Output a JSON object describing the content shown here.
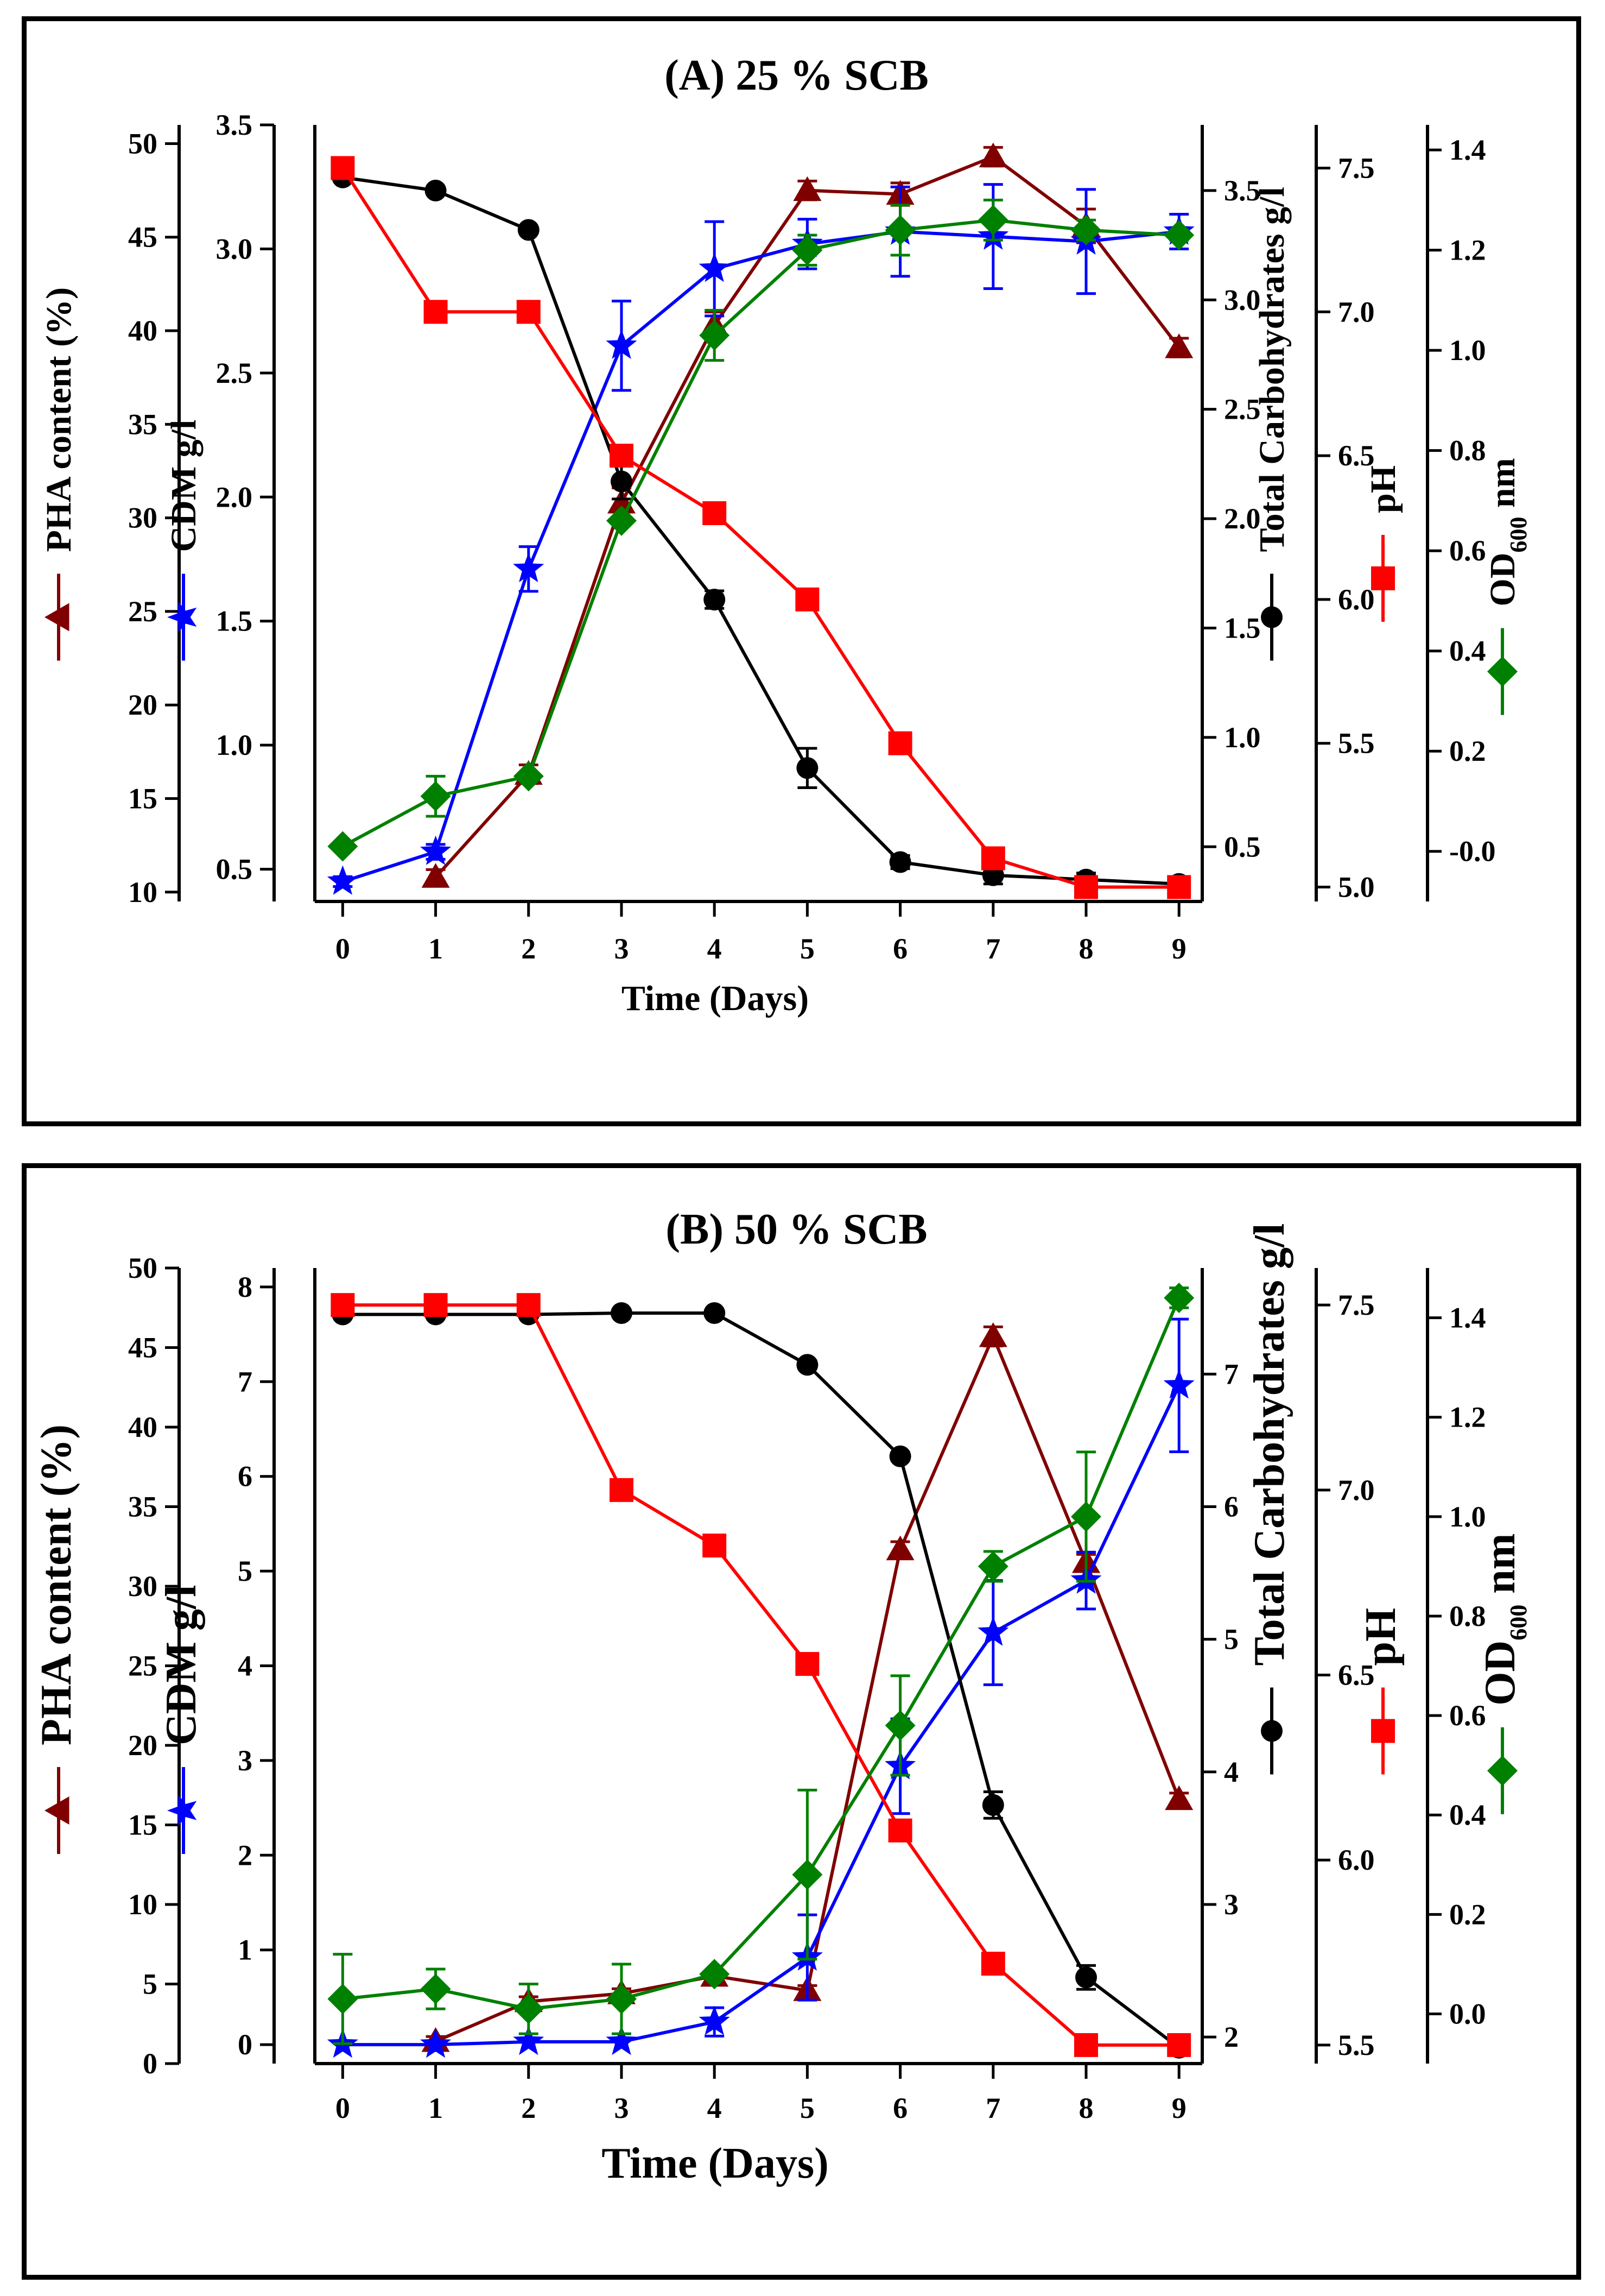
{
  "chart_data": [
    {
      "type": "line",
      "title": "(A) 25 % SCB",
      "xlabel": "Time (Days)",
      "x": [
        0,
        1,
        2,
        3,
        4,
        5,
        6,
        7,
        8,
        9
      ],
      "xticks": [
        "0",
        "1",
        "2",
        "3",
        "4",
        "5",
        "6",
        "7",
        "8",
        "9"
      ],
      "axes": {
        "pha": {
          "label": "PHA content (%)",
          "ylim": [
            9.5,
            51
          ],
          "ticks": [
            "10",
            "15",
            "20",
            "25",
            "30",
            "35",
            "40",
            "45",
            "50"
          ]
        },
        "cdm": {
          "label": "CDM g/l",
          "ylim": [
            0.37,
            3.5
          ],
          "ticks": [
            "0.5",
            "1.0",
            "1.5",
            "2.0",
            "2.5",
            "3.0",
            "3.5"
          ]
        },
        "carb": {
          "label": "Total Carbohydrates g/l",
          "ylim": [
            0.25,
            3.8
          ],
          "ticks": [
            "0.5",
            "1.0",
            "1.5",
            "2.0",
            "2.5",
            "3.0",
            "3.5"
          ]
        },
        "ph": {
          "label": "pH",
          "ylim": [
            4.95,
            7.65
          ],
          "ticks": [
            "5.0",
            "5.5",
            "6.0",
            "6.5",
            "7.0",
            "7.5"
          ]
        },
        "od": {
          "label_main": "OD",
          "label_sub": "600",
          "label_unit": " nm",
          "ylim": [
            -0.1,
            1.45
          ],
          "ticks": [
            "-0.0",
            "0.2",
            "0.4",
            "0.6",
            "0.8",
            "1.0",
            "1.2",
            "1.4"
          ]
        }
      },
      "series": [
        {
          "name": "PHA content (%)",
          "axis": "pha",
          "color": "#800000",
          "marker": "triangle",
          "x": [
            1,
            2,
            3,
            4,
            5,
            6,
            7,
            8,
            9
          ],
          "values": [
            10.8,
            16.3,
            30.8,
            40.3,
            47.5,
            47.3,
            49.3,
            45.6,
            39.1
          ],
          "err": [
            0.4,
            0.5,
            0.8,
            0.7,
            0.5,
            0.6,
            0.5,
            0.9,
            0.5
          ]
        },
        {
          "name": "CDM g/l",
          "axis": "cdm",
          "color": "#0000ff",
          "marker": "star",
          "x": [
            0,
            1,
            2,
            3,
            4,
            5,
            6,
            7,
            8,
            9
          ],
          "values": [
            0.45,
            0.57,
            1.71,
            2.61,
            2.92,
            3.02,
            3.07,
            3.05,
            3.03,
            3.07
          ],
          "err": [
            0.02,
            0.03,
            0.09,
            0.18,
            0.19,
            0.1,
            0.18,
            0.21,
            0.21,
            0.07
          ]
        },
        {
          "name": "Total Carbohydrates g/l",
          "axis": "carb",
          "color": "#000000",
          "marker": "circle",
          "x": [
            0,
            1,
            2,
            3,
            4,
            5,
            6,
            7,
            8,
            9
          ],
          "values": [
            3.56,
            3.5,
            3.32,
            2.17,
            1.63,
            0.86,
            0.43,
            0.37,
            0.35,
            0.33
          ],
          "err": [
            0.0,
            0.0,
            0.0,
            0.08,
            0.04,
            0.09,
            0.03,
            0.04,
            0.03,
            0.03
          ]
        },
        {
          "name": "pH",
          "axis": "ph",
          "color": "#ff0000",
          "marker": "square",
          "x": [
            0,
            1,
            2,
            3,
            4,
            5,
            6,
            7,
            8,
            9
          ],
          "values": [
            7.5,
            7.0,
            7.0,
            6.5,
            6.3,
            6.0,
            5.5,
            5.1,
            5.0,
            5.0
          ]
        },
        {
          "name": "OD600 nm",
          "axis": "od",
          "color": "#008000",
          "marker": "diamond",
          "x": [
            0,
            1,
            2,
            3,
            4,
            5,
            6,
            7,
            8,
            9
          ],
          "values": [
            0.01,
            0.11,
            0.15,
            0.66,
            1.03,
            1.2,
            1.24,
            1.26,
            1.24,
            1.23
          ],
          "err": [
            0.0,
            0.04,
            0.0,
            0.0,
            0.05,
            0.03,
            0.05,
            0.04,
            0.02,
            0.01
          ]
        }
      ]
    },
    {
      "type": "line",
      "title": "(B) 50 % SCB",
      "xlabel": "Time (Days)",
      "x": [
        0,
        1,
        2,
        3,
        4,
        5,
        6,
        7,
        8,
        9
      ],
      "xticks": [
        "0",
        "1",
        "2",
        "3",
        "4",
        "5",
        "6",
        "7",
        "8",
        "9"
      ],
      "axes": {
        "pha": {
          "label": "PHA content (%)",
          "ylim": [
            0,
            50
          ],
          "ticks": [
            "0",
            "5",
            "10",
            "15",
            "20",
            "25",
            "30",
            "35",
            "40",
            "45",
            "50"
          ]
        },
        "cdm": {
          "label": "CDM g/l",
          "ylim": [
            -0.2,
            8.2
          ],
          "ticks": [
            "0",
            "1",
            "2",
            "3",
            "4",
            "5",
            "6",
            "7",
            "8"
          ]
        },
        "carb": {
          "label": "Total Carbohydrates g/l",
          "ylim": [
            1.8,
            7.8
          ],
          "ticks": [
            "2",
            "3",
            "4",
            "5",
            "6",
            "7"
          ]
        },
        "ph": {
          "label": "pH",
          "ylim": [
            5.45,
            7.6
          ],
          "ticks": [
            "5.5",
            "6.0",
            "6.5",
            "7.0",
            "7.5"
          ]
        },
        "od": {
          "label_main": "OD",
          "label_sub": "600",
          "label_unit": " nm",
          "ylim": [
            -0.1,
            1.5
          ],
          "ticks": [
            "0.0",
            "0.2",
            "0.4",
            "0.6",
            "0.8",
            "1.0",
            "1.2",
            "1.4"
          ]
        }
      },
      "series": [
        {
          "name": "PHA content (%)",
          "axis": "pha",
          "color": "#800000",
          "marker": "triangle",
          "x": [
            1,
            2,
            3,
            4,
            5,
            6,
            7,
            8,
            9
          ],
          "values": [
            1.4,
            3.9,
            4.4,
            5.5,
            4.6,
            32.3,
            45.7,
            31.5,
            16.6
          ],
          "err": [
            0.3,
            0.3,
            0.3,
            0.3,
            0.3,
            0.5,
            0.6,
            0.5,
            0.4
          ]
        },
        {
          "name": "CDM g/l",
          "axis": "cdm",
          "color": "#0000ff",
          "marker": "star",
          "x": [
            0,
            1,
            2,
            3,
            4,
            5,
            6,
            7,
            8,
            9
          ],
          "values": [
            0.0,
            0.0,
            0.03,
            0.03,
            0.24,
            0.92,
            2.94,
            4.35,
            4.9,
            6.96
          ],
          "err": [
            0.0,
            0.0,
            0.0,
            0.0,
            0.15,
            0.45,
            0.5,
            0.55,
            0.3,
            0.7
          ]
        },
        {
          "name": "Total Carbohydrates g/l",
          "axis": "carb",
          "color": "#000000",
          "marker": "circle",
          "x": [
            0,
            1,
            2,
            3,
            4,
            5,
            6,
            7,
            8,
            9
          ],
          "values": [
            7.45,
            7.45,
            7.45,
            7.46,
            7.46,
            7.07,
            6.38,
            3.75,
            2.45,
            1.92
          ],
          "err": [
            0.0,
            0.0,
            0.0,
            0.0,
            0.0,
            0.03,
            0.03,
            0.1,
            0.09,
            0.03
          ]
        },
        {
          "name": "pH",
          "axis": "ph",
          "color": "#ff0000",
          "marker": "square",
          "x": [
            0,
            1,
            2,
            3,
            4,
            5,
            6,
            7,
            8,
            9
          ],
          "values": [
            7.5,
            7.5,
            7.5,
            7.0,
            6.85,
            6.53,
            6.08,
            5.72,
            5.5,
            5.5
          ]
        },
        {
          "name": "OD600 nm",
          "axis": "od",
          "color": "#008000",
          "marker": "diamond",
          "x": [
            0,
            1,
            2,
            3,
            4,
            5,
            6,
            7,
            8,
            9
          ],
          "values": [
            0.03,
            0.05,
            0.01,
            0.03,
            0.08,
            0.28,
            0.58,
            0.9,
            1.0,
            1.44
          ],
          "err": [
            0.09,
            0.04,
            0.05,
            0.07,
            0.0,
            0.17,
            0.1,
            0.03,
            0.13,
            0.02
          ]
        }
      ]
    }
  ]
}
